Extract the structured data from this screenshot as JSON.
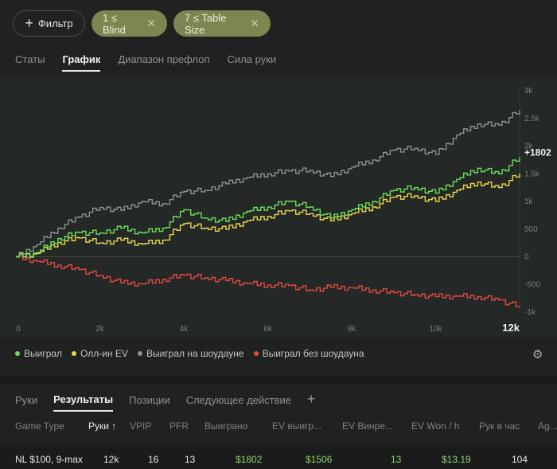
{
  "filters": {
    "add_label": "Фильтр",
    "chips": [
      {
        "label": "1 ≤ Blind"
      },
      {
        "label": "7 ≤ Table Size"
      }
    ]
  },
  "top_tabs": [
    "Статы",
    "График",
    "Диапазон префлоп",
    "Сила руки"
  ],
  "active_top_tab": "График",
  "chart_data": {
    "type": "line",
    "x_ticks": [
      "0",
      "2k",
      "4k",
      "6k",
      "8k",
      "10k",
      "12k"
    ],
    "y_ticks": [
      "3k",
      "2.5k",
      "2k",
      "1.5k",
      "1k",
      "500",
      "0",
      "-500",
      "-1k"
    ],
    "xlim": [
      0,
      12000
    ],
    "ylim": [
      -1000,
      3000
    ],
    "end_label": "+1802",
    "series": [
      {
        "name": "Выиграл",
        "color": "#6be05a",
        "x": [
          0,
          500,
          1000,
          1500,
          2000,
          2500,
          3000,
          3500,
          4000,
          4500,
          5000,
          5500,
          6000,
          6500,
          7000,
          7500,
          8000,
          8500,
          9000,
          9500,
          10000,
          10500,
          11000,
          11500,
          12000
        ],
        "y": [
          0,
          80,
          330,
          440,
          430,
          520,
          430,
          520,
          850,
          700,
          640,
          820,
          900,
          1000,
          900,
          700,
          850,
          1000,
          1200,
          1250,
          1150,
          1400,
          1600,
          1500,
          1802
        ]
      },
      {
        "name": "Олл-ин EV",
        "color": "#e9d94a",
        "x": [
          0,
          500,
          1000,
          1500,
          2000,
          2500,
          3000,
          3500,
          4000,
          4500,
          5000,
          5500,
          6000,
          6500,
          7000,
          7500,
          8000,
          8500,
          9000,
          9500,
          10000,
          10500,
          11000,
          11500,
          12000
        ],
        "y": [
          0,
          60,
          260,
          340,
          250,
          300,
          230,
          300,
          600,
          520,
          500,
          650,
          730,
          830,
          780,
          650,
          780,
          900,
          1080,
          1100,
          1000,
          1200,
          1350,
          1250,
          1506
        ]
      },
      {
        "name": "Выиграл на шоудауне",
        "color": "#8f928e",
        "x": [
          0,
          500,
          1000,
          1500,
          2000,
          2500,
          3000,
          3500,
          4000,
          4500,
          5000,
          5500,
          6000,
          6500,
          7000,
          7500,
          8000,
          8500,
          9000,
          9500,
          10000,
          10500,
          11000,
          11500,
          12000
        ],
        "y": [
          0,
          220,
          520,
          720,
          890,
          840,
          1000,
          960,
          1180,
          1200,
          1320,
          1430,
          1500,
          1550,
          1560,
          1450,
          1620,
          1750,
          1930,
          1960,
          1850,
          2200,
          2400,
          2380,
          2650
        ]
      },
      {
        "name": "Выиграл без шоудауна",
        "color": "#e24a42",
        "x": [
          0,
          500,
          1000,
          1500,
          2000,
          2500,
          3000,
          3500,
          4000,
          4500,
          5000,
          5500,
          6000,
          6500,
          7000,
          7500,
          8000,
          8500,
          9000,
          9500,
          10000,
          10500,
          11000,
          11500,
          12000
        ],
        "y": [
          0,
          -80,
          -150,
          -230,
          -340,
          -470,
          -490,
          -410,
          -330,
          -380,
          -430,
          -480,
          -510,
          -520,
          -600,
          -550,
          -560,
          -600,
          -650,
          -680,
          -720,
          -710,
          -720,
          -780,
          -900
        ]
      }
    ]
  },
  "legend": [
    "Выиграл",
    "Олл-ин EV",
    "Выиграл на шоудауне",
    "Выиграл без шоудауна"
  ],
  "bottom_tabs": [
    "Руки",
    "Результаты",
    "Позиции",
    "Следующее действие"
  ],
  "active_bottom_tab": "Результаты",
  "table": {
    "headers": [
      "Game Type",
      "Руки ↑",
      "VPIP",
      "PFR",
      "Выиграно",
      "EV выигр...",
      "EV Винре...",
      "EV Won / h",
      "Рук в час",
      "Ag..."
    ],
    "row": [
      "NL $100, 9-max",
      "12k",
      "16",
      "13",
      "$1802",
      "$1506",
      "13",
      "$13.19",
      "104"
    ]
  }
}
